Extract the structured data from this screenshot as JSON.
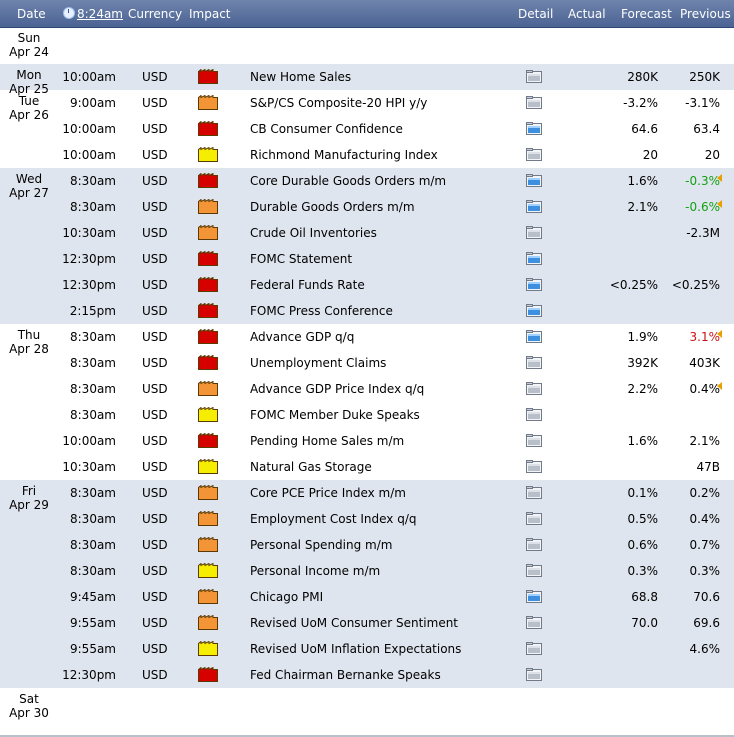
{
  "header": {
    "date": "Date",
    "time": "8:24am",
    "currency": "Currency",
    "impact": "Impact",
    "detail": "Detail",
    "actual": "Actual",
    "forecast": "Forecast",
    "previous": "Previous"
  },
  "colors": {
    "impact": {
      "high": "#d70000",
      "medium": "#f39437",
      "low": "#f6ee00"
    },
    "row_band": "#dfe5ee",
    "header": "#5a709c"
  },
  "days": [
    {
      "dow": "Sun",
      "date": "Apr 24",
      "events": []
    },
    {
      "dow": "Mon",
      "date": "Apr 25",
      "events": [
        {
          "time": "10:00am",
          "currency": "USD",
          "impact": "high",
          "event": "New Home Sales",
          "detail": "detail-icon",
          "actual": "",
          "forecast": "280K",
          "previous": "250K",
          "prev_dir": ""
        }
      ]
    },
    {
      "dow": "Tue",
      "date": "Apr 26",
      "events": [
        {
          "time": "9:00am",
          "currency": "USD",
          "impact": "medium",
          "event": "S&P/CS Composite-20 HPI y/y",
          "detail": "detail-icon",
          "actual": "",
          "forecast": "-3.2%",
          "previous": "-3.1%",
          "prev_dir": ""
        },
        {
          "time": "10:00am",
          "currency": "USD",
          "impact": "high",
          "event": "CB Consumer Confidence",
          "detail": "detail-blue-icon",
          "actual": "",
          "forecast": "64.6",
          "previous": "63.4",
          "prev_dir": ""
        },
        {
          "time": "10:00am",
          "currency": "USD",
          "impact": "low",
          "event": "Richmond Manufacturing Index",
          "detail": "detail-icon",
          "actual": "",
          "forecast": "20",
          "previous": "20",
          "prev_dir": ""
        }
      ]
    },
    {
      "dow": "Wed",
      "date": "Apr 27",
      "events": [
        {
          "time": "8:30am",
          "currency": "USD",
          "impact": "high",
          "event": "Core Durable Goods Orders m/m",
          "detail": "detail-blue-icon",
          "actual": "",
          "forecast": "1.6%",
          "previous": "-0.3%",
          "prev_dir": "up"
        },
        {
          "time": "8:30am",
          "currency": "USD",
          "impact": "medium",
          "event": "Durable Goods Orders m/m",
          "detail": "detail-blue-icon",
          "actual": "",
          "forecast": "2.1%",
          "previous": "-0.6%",
          "prev_dir": "up"
        },
        {
          "time": "10:30am",
          "currency": "USD",
          "impact": "medium",
          "event": "Crude Oil Inventories",
          "detail": "detail-icon",
          "actual": "",
          "forecast": "",
          "previous": "-2.3M",
          "prev_dir": ""
        },
        {
          "time": "12:30pm",
          "currency": "USD",
          "impact": "high",
          "event": "FOMC Statement",
          "detail": "detail-blue-icon",
          "actual": "",
          "forecast": "",
          "previous": "",
          "prev_dir": ""
        },
        {
          "time": "12:30pm",
          "currency": "USD",
          "impact": "high",
          "event": "Federal Funds Rate",
          "detail": "detail-blue-icon",
          "actual": "",
          "forecast": "<0.25%",
          "previous": "<0.25%",
          "prev_dir": ""
        },
        {
          "time": "2:15pm",
          "currency": "USD",
          "impact": "high",
          "event": "FOMC Press Conference",
          "detail": "detail-blue-icon",
          "actual": "",
          "forecast": "",
          "previous": "",
          "prev_dir": ""
        }
      ]
    },
    {
      "dow": "Thu",
      "date": "Apr 28",
      "events": [
        {
          "time": "8:30am",
          "currency": "USD",
          "impact": "high",
          "event": "Advance GDP q/q",
          "detail": "detail-blue-icon",
          "actual": "",
          "forecast": "1.9%",
          "previous": "3.1%",
          "prev_dir": "down"
        },
        {
          "time": "8:30am",
          "currency": "USD",
          "impact": "high",
          "event": "Unemployment Claims",
          "detail": "detail-icon",
          "actual": "",
          "forecast": "392K",
          "previous": "403K",
          "prev_dir": ""
        },
        {
          "time": "8:30am",
          "currency": "USD",
          "impact": "medium",
          "event": "Advance GDP Price Index q/q",
          "detail": "detail-icon",
          "actual": "",
          "forecast": "2.2%",
          "previous": "0.4%",
          "prev_dir": "flag"
        },
        {
          "time": "8:30am",
          "currency": "USD",
          "impact": "low",
          "event": "FOMC Member Duke Speaks",
          "detail": "detail-icon",
          "actual": "",
          "forecast": "",
          "previous": "",
          "prev_dir": ""
        },
        {
          "time": "10:00am",
          "currency": "USD",
          "impact": "high",
          "event": "Pending Home Sales m/m",
          "detail": "detail-icon",
          "actual": "",
          "forecast": "1.6%",
          "previous": "2.1%",
          "prev_dir": ""
        },
        {
          "time": "10:30am",
          "currency": "USD",
          "impact": "low",
          "event": "Natural Gas Storage",
          "detail": "detail-icon",
          "actual": "",
          "forecast": "",
          "previous": "47B",
          "prev_dir": ""
        }
      ]
    },
    {
      "dow": "Fri",
      "date": "Apr 29",
      "events": [
        {
          "time": "8:30am",
          "currency": "USD",
          "impact": "medium",
          "event": "Core PCE Price Index m/m",
          "detail": "detail-icon",
          "actual": "",
          "forecast": "0.1%",
          "previous": "0.2%",
          "prev_dir": ""
        },
        {
          "time": "8:30am",
          "currency": "USD",
          "impact": "medium",
          "event": "Employment Cost Index q/q",
          "detail": "detail-icon",
          "actual": "",
          "forecast": "0.5%",
          "previous": "0.4%",
          "prev_dir": ""
        },
        {
          "time": "8:30am",
          "currency": "USD",
          "impact": "medium",
          "event": "Personal Spending m/m",
          "detail": "detail-icon",
          "actual": "",
          "forecast": "0.6%",
          "previous": "0.7%",
          "prev_dir": ""
        },
        {
          "time": "8:30am",
          "currency": "USD",
          "impact": "low",
          "event": "Personal Income m/m",
          "detail": "detail-icon",
          "actual": "",
          "forecast": "0.3%",
          "previous": "0.3%",
          "prev_dir": ""
        },
        {
          "time": "9:45am",
          "currency": "USD",
          "impact": "medium",
          "event": "Chicago PMI",
          "detail": "detail-blue-icon",
          "actual": "",
          "forecast": "68.8",
          "previous": "70.6",
          "prev_dir": ""
        },
        {
          "time": "9:55am",
          "currency": "USD",
          "impact": "medium",
          "event": "Revised UoM Consumer Sentiment",
          "detail": "detail-icon",
          "actual": "",
          "forecast": "70.0",
          "previous": "69.6",
          "prev_dir": ""
        },
        {
          "time": "9:55am",
          "currency": "USD",
          "impact": "low",
          "event": "Revised UoM Inflation Expectations",
          "detail": "detail-icon",
          "actual": "",
          "forecast": "",
          "previous": "4.6%",
          "prev_dir": ""
        },
        {
          "time": "12:30pm",
          "currency": "USD",
          "impact": "high",
          "event": "Fed Chairman Bernanke Speaks",
          "detail": "detail-icon",
          "actual": "",
          "forecast": "",
          "previous": "",
          "prev_dir": ""
        }
      ]
    },
    {
      "dow": "Sat",
      "date": "Apr 30",
      "events": []
    }
  ]
}
